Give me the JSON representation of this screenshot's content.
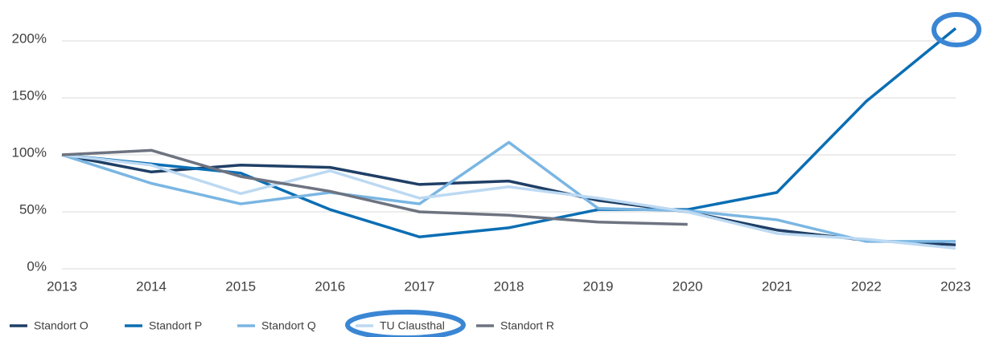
{
  "chart_data": {
    "type": "line",
    "categories": [
      "2013",
      "2014",
      "2015",
      "2016",
      "2017",
      "2018",
      "2019",
      "2020",
      "2021",
      "2022",
      "2023"
    ],
    "series": [
      {
        "name": "Standort O",
        "color": "#1f3f66",
        "values": [
          100,
          85,
          91,
          89,
          74,
          77,
          60,
          50,
          34,
          25,
          21
        ]
      },
      {
        "name": "Standort P",
        "color": "#0a6eb4",
        "values": [
          100,
          92,
          84,
          52,
          28,
          36,
          52,
          52,
          67,
          147,
          211
        ]
      },
      {
        "name": "Standort Q",
        "color": "#7ab6e3",
        "values": [
          100,
          75,
          57,
          67,
          57,
          111,
          53,
          51,
          43,
          24,
          24
        ]
      },
      {
        "name": "TU Clausthal",
        "color": "#bcd9f2",
        "values": [
          100,
          91,
          66,
          86,
          62,
          72,
          62,
          50,
          31,
          26,
          18
        ]
      },
      {
        "name": "Standort R",
        "color": "#6d7380",
        "values": [
          100,
          104,
          81,
          68,
          50,
          47,
          41,
          39,
          null,
          null,
          null
        ]
      }
    ],
    "ylim": [
      0,
      200
    ],
    "yticks": [
      {
        "value": 0,
        "label": "0%"
      },
      {
        "value": 50,
        "label": "50%"
      },
      {
        "value": 100,
        "label": "100%"
      },
      {
        "value": 150,
        "label": "150%"
      },
      {
        "value": 200,
        "label": "200%"
      }
    ],
    "grid": true,
    "legend": "bottom"
  }
}
